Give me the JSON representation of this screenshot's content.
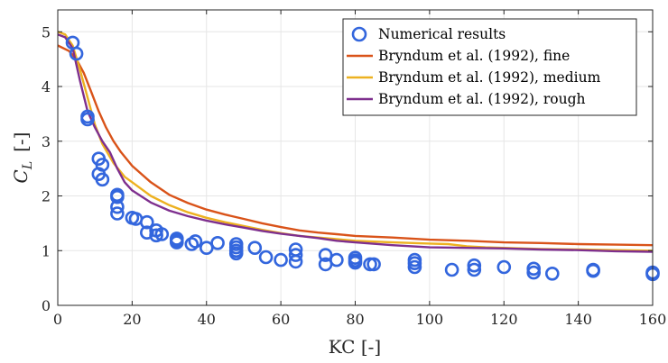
{
  "chart_data": {
    "type": "line",
    "xlabel": "KC [-]",
    "ylabel_main": "C",
    "ylabel_sub": "L",
    "ylabel_suffix": "[-]",
    "xlim": [
      0,
      160
    ],
    "ylim": [
      0,
      5.4
    ],
    "xticks": [
      0,
      20,
      40,
      60,
      80,
      100,
      120,
      140,
      160
    ],
    "yticks": [
      0,
      1,
      2,
      3,
      4,
      5
    ],
    "grid": true,
    "legend_position": "top-right",
    "colors": {
      "numerical": "#3366DD",
      "fine": "#D95319",
      "medium": "#EDB120",
      "rough": "#7E2F8E",
      "grid": "#e6e6e6",
      "axis": "#262626"
    },
    "series": [
      {
        "name": "Numerical results",
        "type": "scatter",
        "color": "#3366DD",
        "points": [
          [
            4,
            4.8
          ],
          [
            5,
            4.6
          ],
          [
            8,
            3.45
          ],
          [
            8,
            3.4
          ],
          [
            11,
            2.68
          ],
          [
            12,
            2.57
          ],
          [
            11,
            2.4
          ],
          [
            12,
            2.3
          ],
          [
            16,
            2.02
          ],
          [
            16,
            1.98
          ],
          [
            16,
            1.8
          ],
          [
            16,
            1.68
          ],
          [
            20,
            1.6
          ],
          [
            21,
            1.58
          ],
          [
            24,
            1.52
          ],
          [
            24,
            1.33
          ],
          [
            26.5,
            1.37
          ],
          [
            26.5,
            1.28
          ],
          [
            28,
            1.3
          ],
          [
            32,
            1.22
          ],
          [
            32,
            1.18
          ],
          [
            32,
            1.15
          ],
          [
            36,
            1.12
          ],
          [
            37,
            1.17
          ],
          [
            40,
            1.05
          ],
          [
            43,
            1.14
          ],
          [
            48,
            1.12
          ],
          [
            48,
            1.06
          ],
          [
            48,
            1.0
          ],
          [
            48,
            0.95
          ],
          [
            53,
            1.05
          ],
          [
            56,
            0.88
          ],
          [
            60,
            0.83
          ],
          [
            64,
            1.02
          ],
          [
            64,
            0.92
          ],
          [
            64,
            0.8
          ],
          [
            72,
            0.92
          ],
          [
            72,
            0.75
          ],
          [
            75,
            0.83
          ],
          [
            80,
            0.87
          ],
          [
            80,
            0.82
          ],
          [
            80,
            0.78
          ],
          [
            84,
            0.75
          ],
          [
            85,
            0.75
          ],
          [
            96,
            0.83
          ],
          [
            96,
            0.77
          ],
          [
            96,
            0.7
          ],
          [
            106,
            0.65
          ],
          [
            112,
            0.73
          ],
          [
            112,
            0.65
          ],
          [
            120,
            0.7
          ],
          [
            128,
            0.67
          ],
          [
            128,
            0.6
          ],
          [
            133,
            0.58
          ],
          [
            144,
            0.65
          ],
          [
            144,
            0.63
          ],
          [
            160,
            0.6
          ],
          [
            160,
            0.57
          ]
        ]
      },
      {
        "name": "Bryndum et al. (1992), fine",
        "type": "line",
        "color": "#D95319",
        "points": [
          [
            0,
            4.75
          ],
          [
            3,
            4.65
          ],
          [
            5,
            4.5
          ],
          [
            7,
            4.25
          ],
          [
            9,
            3.9
          ],
          [
            11,
            3.55
          ],
          [
            13,
            3.25
          ],
          [
            15,
            3.0
          ],
          [
            17,
            2.8
          ],
          [
            20,
            2.55
          ],
          [
            25,
            2.25
          ],
          [
            30,
            2.02
          ],
          [
            35,
            1.87
          ],
          [
            40,
            1.75
          ],
          [
            45,
            1.66
          ],
          [
            50,
            1.58
          ],
          [
            55,
            1.5
          ],
          [
            60,
            1.43
          ],
          [
            65,
            1.37
          ],
          [
            70,
            1.33
          ],
          [
            75,
            1.3
          ],
          [
            80,
            1.27
          ],
          [
            90,
            1.24
          ],
          [
            100,
            1.2
          ],
          [
            110,
            1.18
          ],
          [
            120,
            1.15
          ],
          [
            130,
            1.14
          ],
          [
            140,
            1.12
          ],
          [
            150,
            1.11
          ],
          [
            160,
            1.1
          ]
        ]
      },
      {
        "name": "Bryndum et al. (1992), medium",
        "type": "line",
        "color": "#EDB120",
        "points": [
          [
            0,
            5.0
          ],
          [
            2,
            4.95
          ],
          [
            4,
            4.75
          ],
          [
            6,
            4.3
          ],
          [
            8,
            3.8
          ],
          [
            10,
            3.3
          ],
          [
            12,
            2.95
          ],
          [
            15,
            2.6
          ],
          [
            18,
            2.35
          ],
          [
            20,
            2.25
          ],
          [
            25,
            2.0
          ],
          [
            30,
            1.83
          ],
          [
            35,
            1.7
          ],
          [
            40,
            1.6
          ],
          [
            45,
            1.52
          ],
          [
            50,
            1.45
          ],
          [
            55,
            1.38
          ],
          [
            60,
            1.32
          ],
          [
            65,
            1.27
          ],
          [
            70,
            1.24
          ],
          [
            75,
            1.21
          ],
          [
            80,
            1.18
          ],
          [
            90,
            1.15
          ],
          [
            100,
            1.13
          ],
          [
            105,
            1.12
          ],
          [
            110,
            1.08
          ],
          [
            115,
            1.06
          ],
          [
            120,
            1.05
          ],
          [
            130,
            1.03
          ],
          [
            140,
            1.02
          ],
          [
            150,
            1.01
          ],
          [
            160,
            1.0
          ]
        ]
      },
      {
        "name": "Bryndum et al. (1992), rough",
        "type": "line",
        "color": "#7E2F8E",
        "points": [
          [
            0,
            4.95
          ],
          [
            2,
            4.9
          ],
          [
            4,
            4.7
          ],
          [
            6,
            4.1
          ],
          [
            8,
            3.55
          ],
          [
            10,
            3.25
          ],
          [
            12,
            3.0
          ],
          [
            14,
            2.8
          ],
          [
            16,
            2.5
          ],
          [
            18,
            2.25
          ],
          [
            20,
            2.1
          ],
          [
            25,
            1.88
          ],
          [
            30,
            1.73
          ],
          [
            35,
            1.63
          ],
          [
            40,
            1.55
          ],
          [
            45,
            1.48
          ],
          [
            50,
            1.42
          ],
          [
            55,
            1.36
          ],
          [
            60,
            1.31
          ],
          [
            65,
            1.27
          ],
          [
            70,
            1.23
          ],
          [
            75,
            1.18
          ],
          [
            80,
            1.15
          ],
          [
            90,
            1.1
          ],
          [
            100,
            1.06
          ],
          [
            110,
            1.05
          ],
          [
            120,
            1.04
          ],
          [
            130,
            1.02
          ],
          [
            140,
            1.01
          ],
          [
            150,
            0.99
          ],
          [
            160,
            0.98
          ]
        ]
      }
    ]
  }
}
